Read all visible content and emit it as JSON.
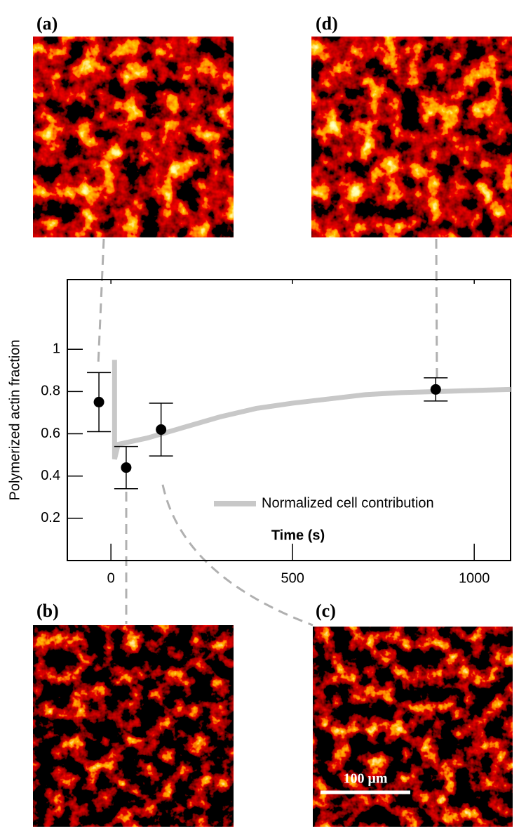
{
  "chart_data": {
    "type": "scatter",
    "xlabel": "Time (s)",
    "ylabel": "Polymerized actin fraction",
    "xlim": [
      -120,
      1100
    ],
    "ylim": [
      0,
      1.33
    ],
    "xticks": [
      0,
      500,
      1000
    ],
    "yticks": [
      0.2,
      0.4,
      0.6,
      0.8,
      1.0
    ],
    "legend": "lower right",
    "series": [
      {
        "name": "Normalized cell contribution",
        "type": "line",
        "color": "#c8c8c8",
        "x": [
          10,
          10,
          20,
          100,
          200,
          300,
          400,
          500,
          600,
          700,
          800,
          900,
          1000,
          1100
        ],
        "values": [
          0.95,
          0.48,
          0.55,
          0.58,
          0.63,
          0.68,
          0.72,
          0.745,
          0.765,
          0.785,
          0.795,
          0.8,
          0.805,
          0.81
        ]
      },
      {
        "type": "errorbar",
        "color": "#000000",
        "x": [
          -33,
          42,
          138,
          894
        ],
        "values": [
          0.75,
          0.44,
          0.62,
          0.81
        ],
        "errors": [
          0.14,
          0.1,
          0.125,
          0.055
        ]
      }
    ]
  },
  "panels": [
    {
      "label": "(a)"
    },
    {
      "label": "(b)"
    },
    {
      "label": "(c)"
    },
    {
      "label": "(d)"
    }
  ],
  "scale_bar": "100 μm"
}
